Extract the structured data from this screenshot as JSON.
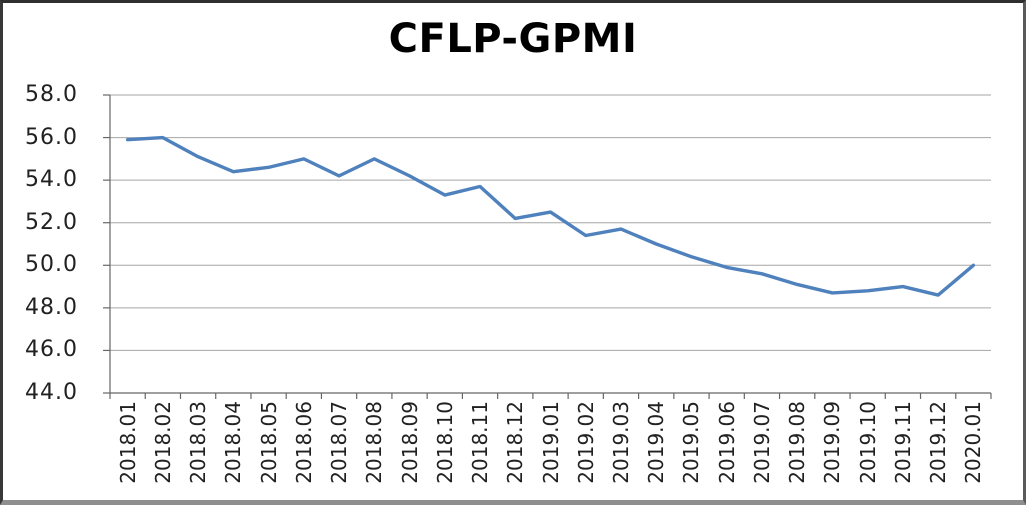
{
  "page": {
    "background": "#ffffff",
    "frame_border_color": "#2f2f2f",
    "frame_bottom_border_color": "#8f8f8f"
  },
  "chart_data": {
    "type": "line",
    "title": "CFLP-GPMI",
    "categories": [
      "2018.01",
      "2018.02",
      "2018.03",
      "2018.04",
      "2018.05",
      "2018.06",
      "2018.07",
      "2018.08",
      "2018.09",
      "2018.10",
      "2018.11",
      "2018.12",
      "2019.01",
      "2019.02",
      "2019.03",
      "2019.04",
      "2019.05",
      "2019.06",
      "2019.07",
      "2019.08",
      "2019.09",
      "2019.10",
      "2019.11",
      "2019.12",
      "2020.01"
    ],
    "series": [
      {
        "name": "CFLP-GPMI",
        "color": "#4F81BD",
        "values": [
          55.9,
          56.0,
          55.1,
          54.4,
          54.6,
          55.0,
          54.2,
          55.0,
          54.2,
          53.3,
          53.7,
          52.2,
          52.5,
          51.4,
          51.7,
          51.0,
          50.4,
          49.9,
          49.6,
          49.1,
          48.7,
          48.8,
          49.0,
          48.6,
          50.0
        ]
      }
    ],
    "xlabel": "",
    "ylabel": "",
    "ylim": [
      44.0,
      58.0
    ],
    "ytick_labels": [
      "58.0",
      "56.0",
      "54.0",
      "52.0",
      "50.0",
      "48.0",
      "46.0",
      "44.0"
    ],
    "x_label_rotation_deg": 90,
    "grid": true,
    "legend_position": "none",
    "gridline_color": "#a6a6a6",
    "axis_color": "#666666",
    "tick_label_color": "#212121",
    "title_color": "#000000"
  }
}
